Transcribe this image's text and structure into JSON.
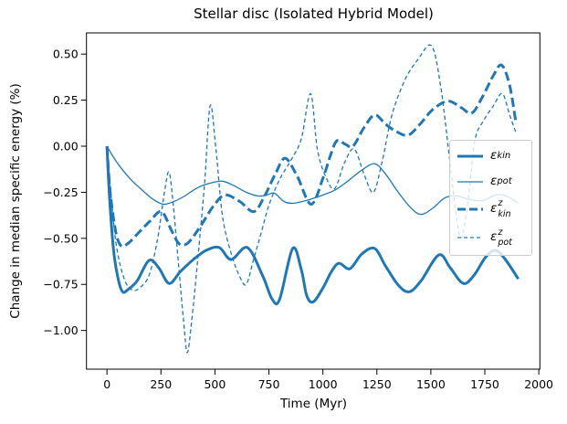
{
  "chart_data": {
    "type": "line",
    "title": "Stellar disc (Isolated Hybrid Model)",
    "xlabel": "Time (Myr)",
    "ylabel": "Change in median specific energy (%)",
    "xlim": [
      -95,
      2005
    ],
    "ylim": [
      -1.21,
      0.615
    ],
    "grid": false,
    "legend_position": "center right",
    "line_color": "#1f77b4",
    "xticks": [
      {
        "v": 0,
        "label": "0"
      },
      {
        "v": 250,
        "label": "250"
      },
      {
        "v": 500,
        "label": "500"
      },
      {
        "v": 750,
        "label": "750"
      },
      {
        "v": 1000,
        "label": "1000"
      },
      {
        "v": 1250,
        "label": "1250"
      },
      {
        "v": 1500,
        "label": "1500"
      },
      {
        "v": 1750,
        "label": "1750"
      },
      {
        "v": 2000,
        "label": "2000"
      }
    ],
    "yticks": [
      {
        "v": 0.5,
        "label": "0.50"
      },
      {
        "v": 0.25,
        "label": "0.25"
      },
      {
        "v": 0.0,
        "label": "0.00"
      },
      {
        "v": -0.25,
        "label": "−0.25"
      },
      {
        "v": -0.5,
        "label": "−0.50"
      },
      {
        "v": -0.75,
        "label": "−0.75"
      },
      {
        "v": -1.0,
        "label": "−1.00"
      }
    ],
    "legend": {
      "entries": [
        {
          "base": "ε",
          "sup": "",
          "sub": "kin"
        },
        {
          "base": "ε",
          "sup": "",
          "sub": "pot"
        },
        {
          "base": "ε",
          "sup": "z",
          "sub": "kin"
        },
        {
          "base": "ε",
          "sup": "z",
          "sub": "pot"
        }
      ]
    },
    "series": [
      {
        "name": "eps_kin",
        "label": "ε_kin",
        "color": "#1f77b4",
        "line": "solid",
        "weight": "thick",
        "points": [
          [
            0,
            0
          ],
          [
            12,
            -0.28
          ],
          [
            30,
            -0.56
          ],
          [
            50,
            -0.71
          ],
          [
            72,
            -0.79
          ],
          [
            100,
            -0.775
          ],
          [
            140,
            -0.73
          ],
          [
            195,
            -0.62
          ],
          [
            240,
            -0.66
          ],
          [
            288,
            -0.745
          ],
          [
            340,
            -0.68
          ],
          [
            400,
            -0.615
          ],
          [
            460,
            -0.565
          ],
          [
            520,
            -0.55
          ],
          [
            575,
            -0.615
          ],
          [
            650,
            -0.55
          ],
          [
            720,
            -0.7
          ],
          [
            765,
            -0.83
          ],
          [
            800,
            -0.83
          ],
          [
            860,
            -0.555
          ],
          [
            900,
            -0.67
          ],
          [
            925,
            -0.81
          ],
          [
            955,
            -0.845
          ],
          [
            1000,
            -0.77
          ],
          [
            1040,
            -0.68
          ],
          [
            1075,
            -0.635
          ],
          [
            1125,
            -0.665
          ],
          [
            1180,
            -0.585
          ],
          [
            1240,
            -0.555
          ],
          [
            1290,
            -0.65
          ],
          [
            1350,
            -0.755
          ],
          [
            1400,
            -0.79
          ],
          [
            1455,
            -0.73
          ],
          [
            1537,
            -0.59
          ],
          [
            1590,
            -0.66
          ],
          [
            1650,
            -0.745
          ],
          [
            1700,
            -0.7
          ],
          [
            1755,
            -0.6
          ],
          [
            1800,
            -0.565
          ],
          [
            1845,
            -0.615
          ],
          [
            1905,
            -0.72
          ]
        ]
      },
      {
        "name": "eps_pot",
        "label": "ε_pot",
        "color": "#1f77b4",
        "line": "solid",
        "weight": "thin",
        "points": [
          [
            0,
            0
          ],
          [
            25,
            -0.05
          ],
          [
            60,
            -0.11
          ],
          [
            110,
            -0.18
          ],
          [
            160,
            -0.235
          ],
          [
            210,
            -0.285
          ],
          [
            260,
            -0.315
          ],
          [
            310,
            -0.3
          ],
          [
            360,
            -0.27
          ],
          [
            420,
            -0.225
          ],
          [
            480,
            -0.2
          ],
          [
            535,
            -0.19
          ],
          [
            590,
            -0.215
          ],
          [
            645,
            -0.25
          ],
          [
            700,
            -0.27
          ],
          [
            740,
            -0.265
          ],
          [
            775,
            -0.255
          ],
          [
            820,
            -0.3
          ],
          [
            860,
            -0.31
          ],
          [
            905,
            -0.3
          ],
          [
            950,
            -0.285
          ],
          [
            1000,
            -0.265
          ],
          [
            1060,
            -0.235
          ],
          [
            1120,
            -0.185
          ],
          [
            1180,
            -0.13
          ],
          [
            1240,
            -0.095
          ],
          [
            1290,
            -0.15
          ],
          [
            1340,
            -0.235
          ],
          [
            1400,
            -0.325
          ],
          [
            1453,
            -0.37
          ],
          [
            1510,
            -0.335
          ],
          [
            1565,
            -0.28
          ],
          [
            1620,
            -0.27
          ],
          [
            1680,
            -0.29
          ],
          [
            1740,
            -0.295
          ],
          [
            1800,
            -0.265
          ],
          [
            1850,
            -0.27
          ],
          [
            1905,
            -0.31
          ]
        ]
      },
      {
        "name": "eps_z_kin",
        "label": "ε^z_kin",
        "color": "#1f77b4",
        "line": "dashed",
        "weight": "thick",
        "points": [
          [
            0,
            0
          ],
          [
            15,
            -0.25
          ],
          [
            40,
            -0.46
          ],
          [
            65,
            -0.54
          ],
          [
            100,
            -0.525
          ],
          [
            150,
            -0.465
          ],
          [
            200,
            -0.405
          ],
          [
            253,
            -0.355
          ],
          [
            300,
            -0.46
          ],
          [
            335,
            -0.53
          ],
          [
            375,
            -0.525
          ],
          [
            430,
            -0.44
          ],
          [
            490,
            -0.33
          ],
          [
            545,
            -0.265
          ],
          [
            615,
            -0.3
          ],
          [
            680,
            -0.355
          ],
          [
            730,
            -0.27
          ],
          [
            780,
            -0.15
          ],
          [
            825,
            -0.065
          ],
          [
            880,
            -0.16
          ],
          [
            945,
            -0.315
          ],
          [
            1000,
            -0.175
          ],
          [
            1035,
            -0.05
          ],
          [
            1065,
            0.03
          ],
          [
            1105,
            0.01
          ],
          [
            1140,
            0.0
          ],
          [
            1190,
            0.1
          ],
          [
            1240,
            0.17
          ],
          [
            1290,
            0.12
          ],
          [
            1340,
            0.08
          ],
          [
            1395,
            0.06
          ],
          [
            1450,
            0.12
          ],
          [
            1510,
            0.2
          ],
          [
            1580,
            0.245
          ],
          [
            1640,
            0.21
          ],
          [
            1690,
            0.18
          ],
          [
            1740,
            0.27
          ],
          [
            1790,
            0.385
          ],
          [
            1828,
            0.44
          ],
          [
            1865,
            0.33
          ],
          [
            1895,
            0.12
          ]
        ]
      },
      {
        "name": "eps_z_pot",
        "label": "ε^z_pot",
        "color": "#1f77b4",
        "line": "dashed",
        "weight": "thin",
        "points": [
          [
            0,
            0
          ],
          [
            20,
            -0.28
          ],
          [
            45,
            -0.55
          ],
          [
            80,
            -0.72
          ],
          [
            115,
            -0.78
          ],
          [
            150,
            -0.77
          ],
          [
            195,
            -0.7
          ],
          [
            235,
            -0.5
          ],
          [
            265,
            -0.26
          ],
          [
            287,
            -0.14
          ],
          [
            307,
            -0.32
          ],
          [
            332,
            -0.65
          ],
          [
            355,
            -0.95
          ],
          [
            372,
            -1.12
          ],
          [
            392,
            -0.95
          ],
          [
            420,
            -0.62
          ],
          [
            452,
            -0.2
          ],
          [
            478,
            0.22
          ],
          [
            505,
            -0.02
          ],
          [
            535,
            -0.38
          ],
          [
            575,
            -0.58
          ],
          [
            612,
            -0.7
          ],
          [
            645,
            -0.75
          ],
          [
            680,
            -0.61
          ],
          [
            712,
            -0.48
          ],
          [
            750,
            -0.32
          ],
          [
            800,
            -0.18
          ],
          [
            850,
            -0.08
          ],
          [
            900,
            0.04
          ],
          [
            943,
            0.285
          ],
          [
            975,
            -0.02
          ],
          [
            1015,
            -0.17
          ],
          [
            1055,
            -0.23
          ],
          [
            1100,
            -0.09
          ],
          [
            1145,
            -0.015
          ],
          [
            1190,
            -0.15
          ],
          [
            1234,
            -0.25
          ],
          [
            1275,
            -0.08
          ],
          [
            1320,
            0.17
          ],
          [
            1380,
            0.36
          ],
          [
            1440,
            0.47
          ],
          [
            1503,
            0.545
          ],
          [
            1545,
            0.33
          ],
          [
            1585,
            -0.05
          ],
          [
            1615,
            -0.35
          ],
          [
            1640,
            -0.5
          ],
          [
            1670,
            -0.32
          ],
          [
            1704,
            0.03
          ],
          [
            1745,
            0.14
          ],
          [
            1790,
            0.22
          ],
          [
            1831,
            0.285
          ],
          [
            1865,
            0.17
          ],
          [
            1895,
            0.07
          ]
        ]
      }
    ]
  }
}
